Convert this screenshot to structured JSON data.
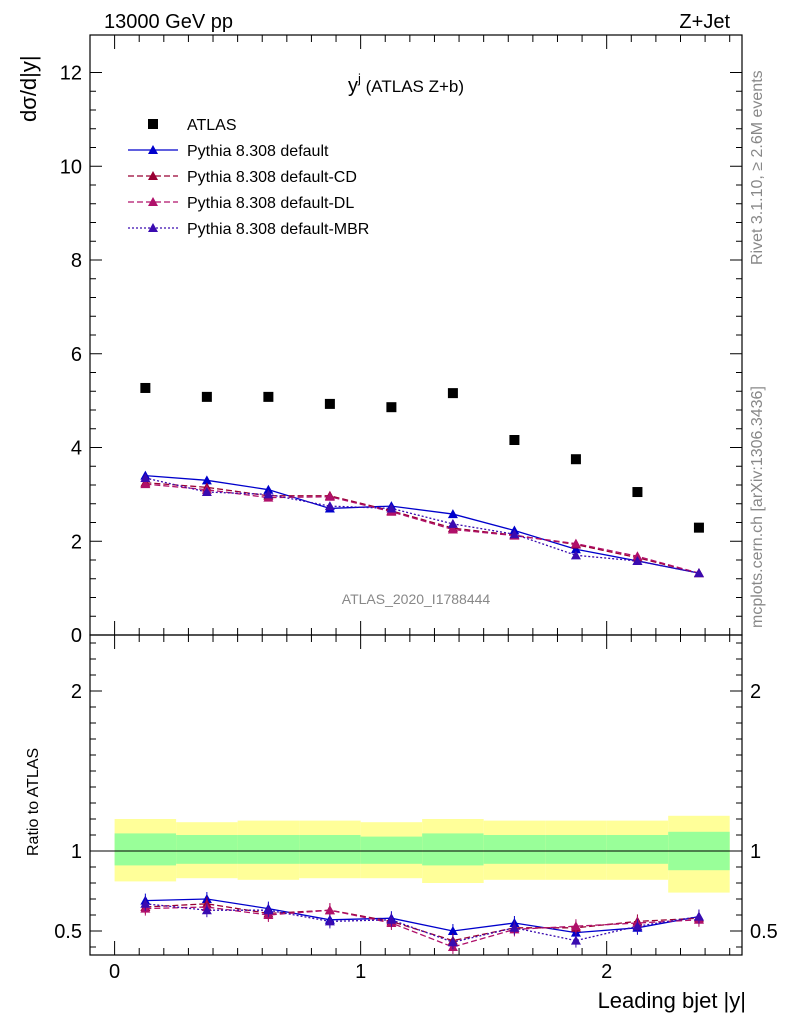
{
  "header": {
    "left": "13000 GeV pp",
    "right": "Z+Jet"
  },
  "side_labels": {
    "rivet": "Rivet 3.1.10, ≥ 2.6M events",
    "mcplots": "mcplots.cern.ch [arXiv:1306.3436]"
  },
  "watermark": "ATLAS_2020_I1788444",
  "chart_data": [
    {
      "type": "scatter",
      "title_main": "y",
      "title_sup": "j",
      "title_rest": " (ATLAS Z+b)",
      "ylabel": "dσ/d|y|",
      "xlim": [
        -0.1,
        2.55
      ],
      "ylim": [
        0,
        12.8
      ],
      "yticks": [
        0,
        2,
        4,
        6,
        8,
        10,
        12
      ],
      "ytick_labels": [
        "0",
        "2",
        "4",
        "6",
        "8",
        "10",
        "12"
      ],
      "x": [
        0.125,
        0.375,
        0.625,
        0.875,
        1.125,
        1.375,
        1.625,
        1.875,
        2.125,
        2.375
      ],
      "bin_edges": [
        0,
        0.25,
        0.5,
        0.75,
        1.0,
        1.25,
        1.5,
        1.75,
        2.0,
        2.25,
        2.5
      ],
      "series": [
        {
          "name": "ATLAS",
          "color": "#000000",
          "style": "marker-square",
          "values": [
            5.27,
            5.08,
            5.08,
            4.93,
            4.86,
            5.16,
            4.16,
            3.75,
            3.05,
            2.29
          ]
        },
        {
          "name": "Pythia 8.308 default",
          "color": "#0000cc",
          "style": "solid",
          "values": [
            3.4,
            3.3,
            3.1,
            2.7,
            2.75,
            2.58,
            2.23,
            1.83,
            1.58,
            1.32
          ]
        },
        {
          "name": "Pythia 8.308 default-CD",
          "color": "#990033",
          "style": "dashed",
          "values": [
            3.25,
            3.15,
            2.97,
            2.97,
            2.65,
            2.28,
            2.13,
            1.93,
            1.65,
            1.32
          ]
        },
        {
          "name": "Pythia 8.308 default-DL",
          "color": "#b0106a",
          "style": "dashed",
          "values": [
            3.22,
            3.1,
            2.93,
            2.95,
            2.63,
            2.25,
            2.12,
            1.95,
            1.68,
            1.32
          ]
        },
        {
          "name": "Pythia 8.308 default-MBR",
          "color": "#3a0bb0",
          "style": "dotted",
          "values": [
            3.35,
            3.05,
            3.0,
            2.75,
            2.7,
            2.37,
            2.15,
            1.7,
            1.58,
            1.32
          ]
        }
      ]
    },
    {
      "type": "line",
      "ylabel": "Ratio to ATLAS",
      "xlabel": "Leading bjet |y|",
      "xlim": [
        -0.1,
        2.55
      ],
      "ylim": [
        0.35,
        2.35
      ],
      "yticks": [
        0.5,
        1,
        2
      ],
      "ytick_labels": [
        "0.5",
        "1",
        "2"
      ],
      "xticks": [
        0,
        1,
        2
      ],
      "xtick_labels": [
        "0",
        "1",
        "2"
      ],
      "x": [
        0.125,
        0.375,
        0.625,
        0.875,
        1.125,
        1.375,
        1.625,
        1.875,
        2.125,
        2.375
      ],
      "bin_edges": [
        0,
        0.25,
        0.5,
        0.75,
        1.0,
        1.25,
        1.5,
        1.75,
        2.0,
        2.25,
        2.5
      ],
      "bands": {
        "stat_color": "#99ff99",
        "total_color": "#ffff99",
        "stat_low": [
          0.91,
          0.92,
          0.92,
          0.92,
          0.92,
          0.91,
          0.92,
          0.92,
          0.92,
          0.88
        ],
        "stat_high": [
          1.11,
          1.1,
          1.1,
          1.1,
          1.09,
          1.11,
          1.1,
          1.1,
          1.1,
          1.12
        ],
        "total_low": [
          0.81,
          0.83,
          0.82,
          0.83,
          0.83,
          0.8,
          0.82,
          0.82,
          0.82,
          0.74
        ],
        "total_high": [
          1.2,
          1.18,
          1.19,
          1.19,
          1.18,
          1.2,
          1.19,
          1.19,
          1.19,
          1.22
        ]
      },
      "series": [
        {
          "name": "Pythia 8.308 default",
          "color": "#0000cc",
          "style": "solid",
          "values": [
            0.69,
            0.7,
            0.64,
            0.57,
            0.58,
            0.5,
            0.55,
            0.49,
            0.52,
            0.59
          ]
        },
        {
          "name": "Pythia 8.308 default-CD",
          "color": "#990033",
          "style": "dashed",
          "values": [
            0.65,
            0.67,
            0.61,
            0.63,
            0.56,
            0.44,
            0.52,
            0.52,
            0.56,
            0.58
          ]
        },
        {
          "name": "Pythia 8.308 default-DL",
          "color": "#b0106a",
          "style": "dashed",
          "values": [
            0.64,
            0.65,
            0.6,
            0.63,
            0.55,
            0.4,
            0.51,
            0.53,
            0.55,
            0.57
          ]
        },
        {
          "name": "Pythia 8.308 default-MBR",
          "color": "#3a0bb0",
          "style": "dotted",
          "values": [
            0.67,
            0.63,
            0.63,
            0.56,
            0.57,
            0.43,
            0.52,
            0.44,
            0.53,
            0.59
          ]
        }
      ]
    }
  ]
}
